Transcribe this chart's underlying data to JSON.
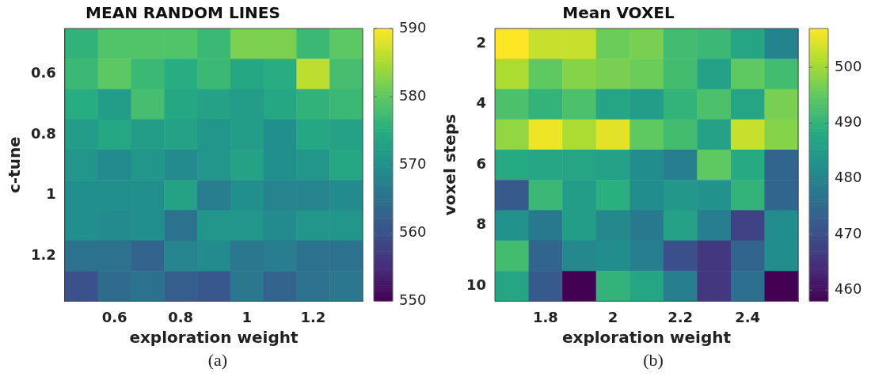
{
  "chart_data": [
    {
      "type": "heatmap",
      "title": "MEAN RANDOM LINES",
      "xlabel": "exploration weight",
      "ylabel": "c-tune",
      "categories": [
        null,
        "0.6",
        null,
        "0.8",
        null,
        "1",
        null,
        "1.2",
        null
      ],
      "y_categories": [
        null,
        "0.6",
        null,
        "0.8",
        null,
        "1",
        null,
        "1.2",
        null
      ],
      "cells": [
        [
          576,
          579,
          579,
          579,
          577,
          582,
          582,
          577,
          580
        ],
        [
          577,
          580,
          577,
          575,
          577,
          574,
          575,
          586,
          578
        ],
        [
          575,
          572,
          578,
          574,
          573,
          572,
          574,
          576,
          577
        ],
        [
          572,
          574,
          572,
          573,
          571,
          572,
          570,
          574,
          573
        ],
        [
          571,
          569,
          571,
          569,
          571,
          573,
          570,
          571,
          574
        ],
        [
          570,
          570,
          570,
          573,
          567,
          570,
          568,
          568,
          569
        ],
        [
          570,
          569,
          570,
          565,
          571,
          571,
          569,
          571,
          571
        ],
        [
          565,
          565,
          563,
          568,
          569,
          566,
          567,
          565,
          565
        ],
        [
          560,
          564,
          565,
          562,
          561,
          566,
          563,
          565,
          566
        ]
      ],
      "clim": [
        550,
        590
      ],
      "cticks": [
        550,
        560,
        570,
        580,
        590
      ],
      "annotations": [
        "(a)"
      ]
    },
    {
      "type": "heatmap",
      "title": "Mean VOXEL",
      "xlabel": "exploration weight",
      "ylabel": "voxel steps",
      "categories": [
        null,
        "1.8",
        null,
        "2",
        null,
        "2.2",
        null,
        "2.4",
        null
      ],
      "y_categories": [
        "2",
        null,
        "4",
        null,
        "6",
        null,
        "8",
        null,
        "10"
      ],
      "cells": [
        [
          507,
          503,
          503,
          496,
          497,
          492,
          491,
          487,
          480
        ],
        [
          501,
          495,
          498,
          497,
          496,
          492,
          486,
          495,
          492
        ],
        [
          493,
          490,
          493,
          487,
          485,
          490,
          493,
          487,
          497
        ],
        [
          499,
          506,
          501,
          505,
          495,
          492,
          486,
          503,
          498
        ],
        [
          488,
          487,
          487,
          486,
          482,
          479,
          495,
          488,
          474
        ],
        [
          472,
          491,
          485,
          489,
          482,
          484,
          483,
          490,
          474
        ],
        [
          483,
          478,
          485,
          481,
          478,
          486,
          479,
          468,
          482
        ],
        [
          492,
          474,
          481,
          482,
          479,
          470,
          466,
          474,
          482
        ],
        [
          487,
          472,
          458,
          490,
          487,
          479,
          466,
          476,
          458
        ]
      ],
      "clim": [
        458,
        507
      ],
      "cticks": [
        460,
        470,
        480,
        490,
        500
      ],
      "annotations": [
        "(b)"
      ]
    }
  ]
}
